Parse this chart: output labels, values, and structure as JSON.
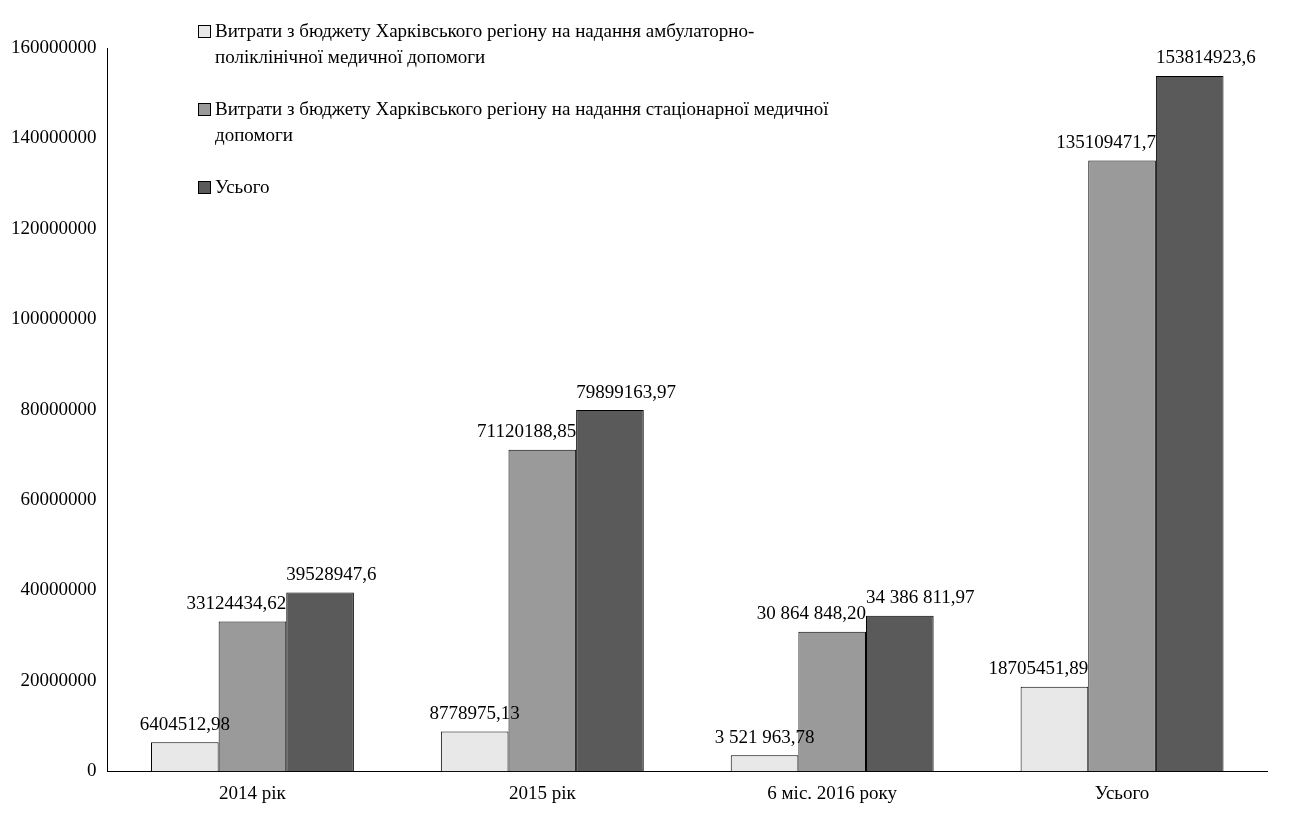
{
  "chart_data": {
    "type": "bar",
    "categories": [
      "2014 рік",
      "2015 рік",
      "6 міс. 2016 року",
      "Усього"
    ],
    "series": [
      {
        "name": "Витрати з бюджету Харківського регіону на надання амбулаторно-поліклінічної медичної допомоги",
        "color": "#e8e8e8",
        "values": [
          6404512.98,
          8778975.13,
          3521963.78,
          18705451.89
        ],
        "value_labels": [
          "6404512,98",
          "8778975,13",
          "3 521 963,78",
          "18705451,89"
        ]
      },
      {
        "name": "Витрати з бюджету Харківського регіону на надання стаціонарної медичної допомоги",
        "color": "#9a9a9a",
        "values": [
          33124434.62,
          71120188.85,
          30864848.2,
          135109471.7
        ],
        "value_labels": [
          "33124434,62",
          "71120188,85",
          "30 864 848,20",
          "135109471,7"
        ]
      },
      {
        "name": "Усього",
        "color": "#5a5a5a",
        "values": [
          39528947.6,
          79899163.97,
          34386811.97,
          153814923.6
        ],
        "value_labels": [
          "39528947,6",
          "79899163,97",
          "34 386 811,97",
          "153814923,6"
        ]
      }
    ],
    "ylim": [
      0,
      160000000
    ],
    "yticks": [
      0,
      20000000,
      40000000,
      60000000,
      80000000,
      100000000,
      120000000,
      140000000,
      160000000
    ],
    "grid": false,
    "legend": "top left"
  }
}
